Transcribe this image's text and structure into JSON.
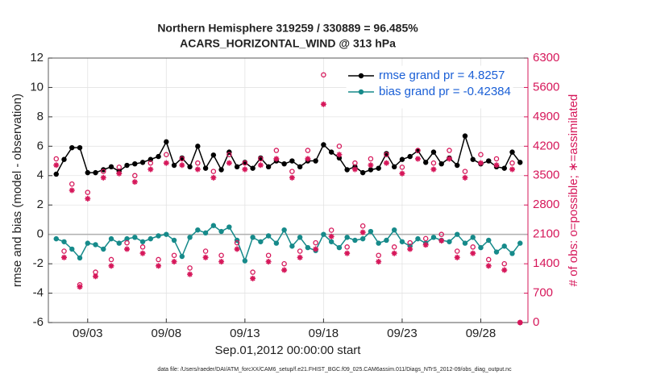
{
  "chart_data": {
    "type": "line",
    "title": "Northern Hemisphere 319259 / 330889 = 96.485%",
    "subtitle": "ACARS_HORIZONTAL_WIND @ 313 hPa",
    "xlabel": "Sep.01,2012 00:00:00 start",
    "ylabel": "rmse and bias (model - observation)",
    "y2label": "# of obs: o=possible; ∗=assimilated",
    "footnote": "data file: /Users/raeder/DAI/ATM_forcXX/CAM6_setup/f.e21.FHIST_BGC.f09_025.CAM6assim.011/Diags_NTrS_2012-09/obs_diag_output.nc",
    "x": [
      1,
      1.5,
      2,
      2.5,
      3,
      3.5,
      4,
      4.5,
      5,
      5.5,
      6,
      6.5,
      7,
      7.5,
      8,
      8.5,
      9,
      9.5,
      10,
      10.5,
      11,
      11.5,
      12,
      12.5,
      13,
      13.5,
      14,
      14.5,
      15,
      15.5,
      16,
      16.5,
      17,
      17.5,
      18,
      18.5,
      19,
      19.5,
      20,
      20.5,
      21,
      21.5,
      22,
      22.5,
      23,
      23.5,
      24,
      24.5,
      25,
      25.5,
      26,
      26.5,
      27,
      27.5,
      28,
      28.5,
      29,
      29.5,
      30,
      30.5
    ],
    "xlim": [
      0.5,
      31
    ],
    "xticks": [
      {
        "value": 3,
        "label": "09/03"
      },
      {
        "value": 8,
        "label": "09/08"
      },
      {
        "value": 13,
        "label": "09/13"
      },
      {
        "value": 18,
        "label": "09/18"
      },
      {
        "value": 23,
        "label": "09/23"
      },
      {
        "value": 28,
        "label": "09/28"
      }
    ],
    "ylim": [
      -6,
      12
    ],
    "yticks": [
      -6,
      -4,
      -2,
      0,
      2,
      4,
      6,
      8,
      10,
      12
    ],
    "y2lim": [
      0,
      6300
    ],
    "y2ticks": [
      0,
      700,
      1400,
      2100,
      2800,
      3500,
      4200,
      4900,
      5600,
      6300
    ],
    "grid": true,
    "legend": "upper right",
    "zero_line_color": "#b0b0b0",
    "y2_color": "#d6175a",
    "series": [
      {
        "name": "rmse grand pr = 4.8257",
        "color": "#000000",
        "marker": "dot",
        "values": [
          4.1,
          5.1,
          5.9,
          5.9,
          4.2,
          4.2,
          4.4,
          4.6,
          4.3,
          4.7,
          4.8,
          4.9,
          5.1,
          5.3,
          6.3,
          4.7,
          5.2,
          4.6,
          6.0,
          4.5,
          5.4,
          4.4,
          5.6,
          4.6,
          4.9,
          4.5,
          5.2,
          4.6,
          5.0,
          4.8,
          5.0,
          4.6,
          5.0,
          5.0,
          6.1,
          5.6,
          5.2,
          4.4,
          4.6,
          4.2,
          4.4,
          4.5,
          5.5,
          4.6,
          5.1,
          5.3,
          5.7,
          4.9,
          5.6,
          4.8,
          5.2,
          4.7,
          6.7,
          5.1,
          4.8,
          5.0,
          4.6,
          4.5,
          5.6,
          4.9
        ]
      },
      {
        "name": "bias grand pr = -0.42384",
        "color": "#168a8a",
        "marker": "dot",
        "values": [
          -0.3,
          -0.5,
          -1.0,
          -1.6,
          -0.6,
          -0.7,
          -1.0,
          -0.3,
          -0.6,
          -0.3,
          -0.2,
          -0.5,
          -0.3,
          -0.1,
          0.0,
          -0.4,
          -1.5,
          -0.2,
          0.3,
          0.1,
          0.6,
          0.2,
          0.5,
          -0.4,
          -1.8,
          -0.2,
          -0.5,
          -0.1,
          -0.6,
          0.3,
          -0.8,
          -0.2,
          -0.9,
          -1.1,
          0.0,
          -0.5,
          -0.9,
          -0.2,
          -0.4,
          -0.3,
          0.2,
          -0.6,
          -0.4,
          0.3,
          -0.5,
          -0.8,
          -0.3,
          -0.6,
          -0.2,
          -0.4,
          -0.5,
          0.0,
          -0.6,
          -0.2,
          -0.9,
          -0.4,
          -1.2,
          -0.8,
          -1.3,
          -0.6
        ]
      },
      {
        "color": "#d6175a",
        "marker": "o",
        "axis": "y2",
        "values": [
          3900,
          1700,
          3300,
          900,
          3100,
          1200,
          3600,
          1500,
          3700,
          1900,
          3500,
          1800,
          3800,
          1500,
          4000,
          1600,
          3900,
          1300,
          3800,
          1700,
          3600,
          1600,
          4000,
          1900,
          3800,
          1200,
          3900,
          1600,
          4100,
          1400,
          3600,
          1700,
          4100,
          1900,
          5900,
          2200,
          4200,
          1800,
          3800,
          2300,
          3900,
          1600,
          4000,
          1800,
          3700,
          1900,
          4100,
          2000,
          3800,
          2100,
          4100,
          1700,
          3600,
          1800,
          4000,
          1500,
          3900,
          1400,
          3800,
          0
        ]
      },
      {
        "color": "#d6175a",
        "marker": "*",
        "axis": "y2",
        "values": [
          3750,
          1550,
          3150,
          850,
          2950,
          1100,
          3450,
          1350,
          3550,
          1750,
          3350,
          1650,
          3650,
          1350,
          3800,
          1450,
          3750,
          1150,
          3650,
          1550,
          3450,
          1450,
          3800,
          1750,
          3650,
          1050,
          3750,
          1450,
          3900,
          1250,
          3450,
          1550,
          3900,
          1750,
          5200,
          2050,
          4000,
          1650,
          3650,
          2150,
          3750,
          1450,
          3800,
          1650,
          3550,
          1750,
          3900,
          1850,
          3650,
          1950,
          3900,
          1550,
          3450,
          1650,
          3800,
          1350,
          3750,
          1250,
          3650,
          0
        ]
      }
    ]
  }
}
